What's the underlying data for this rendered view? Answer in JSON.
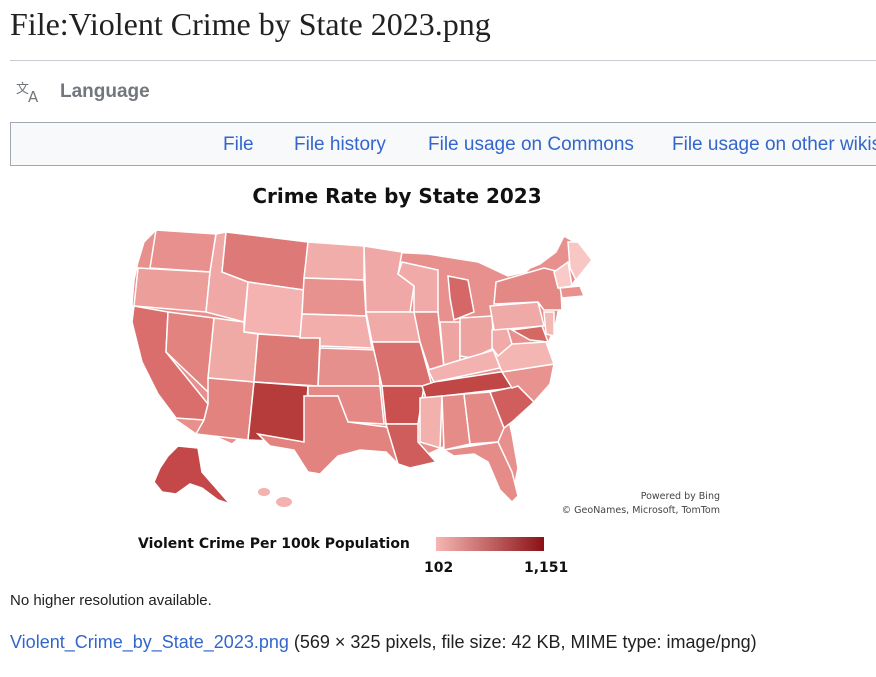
{
  "page": {
    "title": "File:Violent Crime by State 2023.png"
  },
  "language": {
    "label": "Language",
    "icon": "translate-icon"
  },
  "tabs": [
    {
      "label": "File"
    },
    {
      "label": "File history"
    },
    {
      "label": "File usage on Commons"
    },
    {
      "label": "File usage on other wikis"
    }
  ],
  "image": {
    "title": "Crime Rate by State 2023",
    "credit_line1": "Powered by Bing",
    "credit_line2": "© GeoNames, Microsoft, TomTom",
    "legend": {
      "title": "Violent Crime Per 100k Population",
      "min": "102",
      "max": "1,151",
      "color_low": "#f6b6b3",
      "color_high": "#8b1115"
    }
  },
  "note": "No higher resolution available.",
  "fileinfo": {
    "link": "Violent_Crime_by_State_2023.png",
    "details": " (569 × 325 pixels, file size: 42 KB, MIME type: image/png)"
  },
  "colors": {
    "link": "#3366cc",
    "text": "#202122",
    "muted": "#72777d",
    "border": "#a2a9b1"
  }
}
